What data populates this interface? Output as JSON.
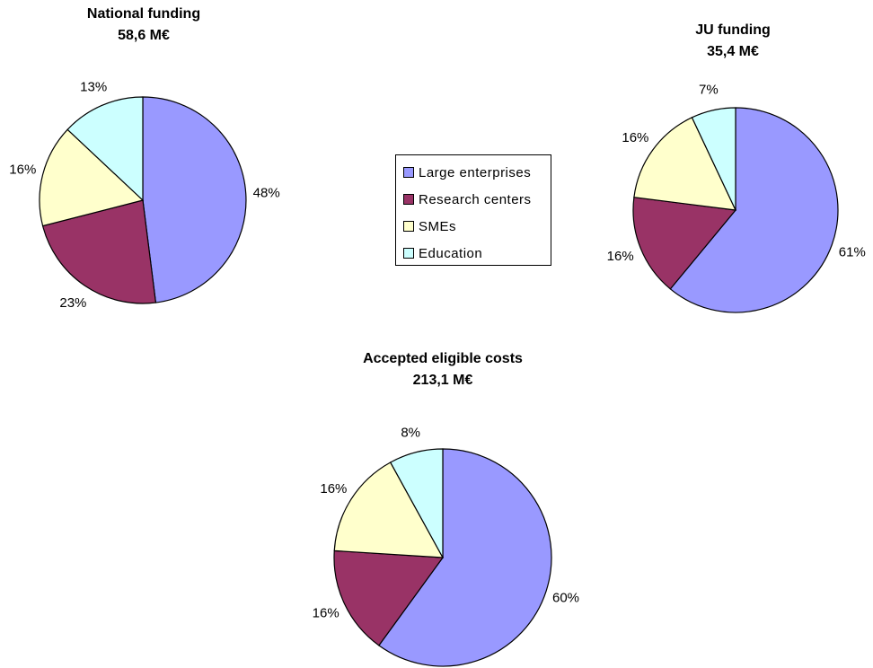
{
  "colors": {
    "Large enterprises": "#9999ff",
    "Research centers": "#993366",
    "SMEs": "#ffffcc",
    "Education": "#ccffff"
  },
  "legend": {
    "items": [
      {
        "label": "Large enterprises",
        "color": "#9999ff"
      },
      {
        "label": "Research centers",
        "color": "#993366"
      },
      {
        "label": "SMEs",
        "color": "#ffffcc"
      },
      {
        "label": "Education",
        "color": "#ccffff"
      }
    ]
  },
  "chart_data": [
    {
      "type": "pie",
      "title": "National funding",
      "subtitle": "58,6 M€",
      "categories": [
        "Large enterprises",
        "Research centers",
        "SMEs",
        "Education"
      ],
      "values": [
        48,
        23,
        16,
        13
      ],
      "labels": [
        "48%",
        "23%",
        "16%",
        "13%"
      ]
    },
    {
      "type": "pie",
      "title": "JU funding",
      "subtitle": "35,4 M€",
      "categories": [
        "Large enterprises",
        "Research centers",
        "SMEs",
        "Education"
      ],
      "values": [
        61,
        16,
        16,
        7
      ],
      "labels": [
        "61%",
        "16%",
        "16%",
        "7%"
      ]
    },
    {
      "type": "pie",
      "title": "Accepted eligible costs",
      "subtitle": "213,1 M€",
      "categories": [
        "Large enterprises",
        "Research centers",
        "SMEs",
        "Education"
      ],
      "values": [
        60,
        16,
        16,
        8
      ],
      "labels": [
        "60%",
        "16%",
        "16%",
        "8%"
      ]
    }
  ]
}
